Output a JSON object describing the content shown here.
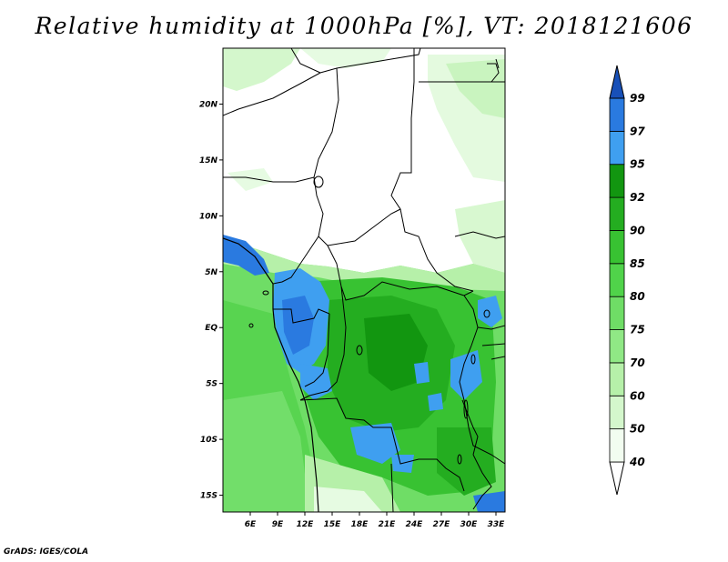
{
  "title": "Relative humidity at 1000hPa [%], VT: 2018121606",
  "credit": "GrADS: IGES/COLA",
  "map": {
    "lon_range": [
      3,
      34
    ],
    "lat_range": [
      -16.5,
      25
    ],
    "lon_ticks": [
      "6E",
      "9E",
      "12E",
      "15E",
      "18E",
      "21E",
      "24E",
      "27E",
      "30E",
      "33E"
    ],
    "lon_tick_values": [
      6,
      9,
      12,
      15,
      18,
      21,
      24,
      27,
      30,
      33
    ],
    "lat_ticks": [
      "20N",
      "15N",
      "10N",
      "5N",
      "EQ",
      "5S",
      "10S",
      "15S"
    ],
    "lat_tick_values": [
      20,
      15,
      10,
      5,
      0,
      -5,
      -10,
      -15
    ]
  },
  "colorbar": {
    "levels": [
      "40",
      "50",
      "60",
      "70",
      "75",
      "80",
      "85",
      "90",
      "92",
      "95",
      "97",
      "99"
    ],
    "colors": [
      "#f2fdf0",
      "#d4f7cc",
      "#b6f0a9",
      "#90e885",
      "#6fdd66",
      "#50d34a",
      "#38c232",
      "#24ad20",
      "#129610",
      "#3f9ff0",
      "#2a7ae0",
      "#1e60c8"
    ],
    "under_color": "#ffffff",
    "over_color": "#1850b8"
  }
}
